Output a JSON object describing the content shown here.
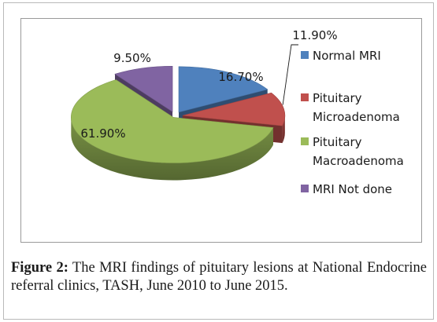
{
  "chart_data": {
    "type": "pie",
    "title": "",
    "categories": [
      "Normal MRI",
      "Pituitary Microadenoma",
      "Pituitary Macroadenoma",
      "MRI Not done"
    ],
    "values": [
      16.7,
      11.9,
      61.9,
      9.5
    ],
    "data_labels": [
      "16.70%",
      "11.90%",
      "61.90%",
      "9.50%"
    ],
    "legend_lines": [
      [
        "Normal MRI"
      ],
      [
        "Pituitary",
        "Microadenoma"
      ],
      [
        "Pituitary",
        "Macroadenoma"
      ],
      [
        "MRI Not done"
      ]
    ],
    "colors": [
      "#4f81bd",
      "#c0504d",
      "#9bbb59",
      "#8064a2"
    ],
    "legend_position": "right",
    "style": "3d-exploded"
  },
  "caption": {
    "label": "Figure 2:",
    "text": " The MRI findings of pituitary lesions at National Endocrine referral clinics, TASH, June 2010 to June 2015."
  }
}
